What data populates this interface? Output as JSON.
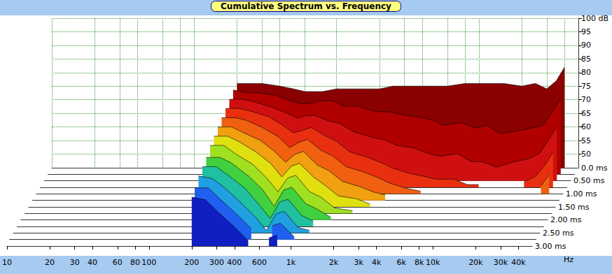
{
  "chart_data": {
    "type": "waterfall",
    "title": "Cumulative Spectrum vs. Frequency",
    "x_label": "Hz",
    "log": "x",
    "grid": true,
    "xlim": [
      10,
      50000
    ],
    "xticks": [
      10,
      20,
      30,
      40,
      60,
      80,
      100,
      200,
      300,
      400,
      600,
      {
        "value": 1000,
        "label": "1k"
      },
      {
        "value": 2000,
        "label": "2k"
      },
      {
        "value": 3000,
        "label": "3k"
      },
      {
        "value": 4000,
        "label": "4k"
      },
      {
        "value": 6000,
        "label": "6k"
      },
      {
        "value": 8000,
        "label": "8k"
      },
      {
        "value": 10000,
        "label": "10k"
      },
      {
        "value": 20000,
        "label": "20k"
      },
      {
        "value": 30000,
        "label": "30k"
      },
      {
        "value": 40000,
        "label": "40k"
      }
    ],
    "ylim": [
      45,
      100
    ],
    "yticks": [
      50,
      55,
      60,
      65,
      70,
      75,
      80,
      85,
      90,
      95,
      {
        "value": 100,
        "label": "100 dB"
      }
    ],
    "zlim": [
      0,
      3
    ],
    "zticks": [
      {
        "value": 0,
        "label": "0.0 ms"
      },
      {
        "value": 0.5,
        "label": "0.50 ms"
      },
      {
        "value": 1,
        "label": "1.00 ms"
      },
      {
        "value": 1.5,
        "label": "1.50 ms"
      },
      {
        "value": 2,
        "label": "2.00 ms"
      },
      {
        "value": 2.5,
        "label": "2.50 ms"
      },
      {
        "value": 3,
        "label": "3.00 ms"
      }
    ],
    "x": [
      200,
      250,
      300,
      400,
      500,
      600,
      700,
      800,
      1000,
      1200,
      1500,
      2000,
      2500,
      3000,
      4000,
      5000,
      6000,
      8000,
      10000,
      12000,
      15000,
      20000,
      25000,
      30000,
      35000,
      40000
    ],
    "z": [
      0,
      0.25,
      0.5,
      0.75,
      1,
      1.25,
      1.5,
      1.75,
      2,
      2.25,
      2.5,
      2.75,
      3
    ],
    "values": [
      [
        76,
        76,
        76,
        75,
        74,
        73,
        73,
        73,
        74,
        74,
        74,
        74,
        75,
        75,
        75,
        75,
        75,
        76,
        76,
        76,
        76,
        75,
        76,
        74,
        77,
        82
      ],
      [
        76,
        75,
        75,
        74,
        72,
        71,
        71,
        72,
        72,
        70,
        70,
        68,
        68,
        67,
        66,
        65,
        63,
        64,
        62,
        63,
        60,
        61,
        62,
        63,
        68,
        73
      ],
      [
        75,
        75,
        74,
        72,
        70,
        68,
        69,
        69,
        67,
        66,
        63,
        61,
        60,
        58,
        57,
        55,
        54,
        55,
        52,
        52,
        50,
        52,
        53,
        55,
        60,
        65
      ],
      [
        74,
        74,
        73,
        71,
        68,
        65,
        66,
        67,
        64,
        62,
        58,
        56,
        54,
        52,
        50,
        49,
        48,
        48,
        46,
        46,
        null,
        null,
        47,
        49,
        53,
        58
      ],
      [
        73,
        73,
        72,
        69,
        66,
        62,
        64,
        65,
        61,
        59,
        55,
        53,
        51,
        49,
        47,
        46,
        null,
        46,
        null,
        null,
        null,
        null,
        null,
        null,
        48,
        52
      ],
      [
        72,
        72,
        70,
        67,
        63,
        59,
        62,
        63,
        58,
        56,
        52,
        50,
        48,
        47,
        null,
        null,
        null,
        null,
        null,
        null,
        null,
        null,
        null,
        null,
        null,
        47
      ],
      [
        71,
        71,
        69,
        65,
        61,
        56,
        60,
        61,
        56,
        53,
        49,
        48,
        46,
        null,
        null,
        null,
        null,
        null,
        null,
        null,
        null,
        null,
        null,
        null,
        null,
        null
      ],
      [
        70,
        70,
        67,
        63,
        58,
        53,
        58,
        59,
        53,
        51,
        47,
        46,
        null,
        null,
        null,
        null,
        null,
        null,
        null,
        null,
        null,
        null,
        null,
        null,
        null,
        null
      ],
      [
        68,
        68,
        66,
        61,
        56,
        50,
        56,
        57,
        51,
        49,
        46,
        null,
        null,
        null,
        null,
        null,
        null,
        null,
        null,
        null,
        null,
        null,
        null,
        null,
        null,
        null
      ],
      [
        67,
        67,
        64,
        59,
        53,
        48,
        54,
        55,
        49,
        47,
        null,
        null,
        null,
        null,
        null,
        null,
        null,
        null,
        null,
        null,
        null,
        null,
        null,
        null,
        null,
        null
      ],
      [
        66,
        65,
        62,
        56,
        51,
        46,
        52,
        53,
        47,
        46,
        null,
        null,
        null,
        null,
        null,
        null,
        null,
        null,
        null,
        null,
        null,
        null,
        null,
        null,
        null,
        null
      ],
      [
        64,
        64,
        60,
        54,
        49,
        null,
        50,
        51,
        46,
        null,
        null,
        null,
        null,
        null,
        null,
        null,
        null,
        null,
        null,
        null,
        null,
        null,
        null,
        null,
        null,
        null
      ],
      [
        63,
        62,
        58,
        52,
        47,
        null,
        48,
        49,
        null,
        null,
        null,
        null,
        null,
        null,
        null,
        null,
        null,
        null,
        null,
        null,
        null,
        null,
        null,
        null,
        null,
        null
      ]
    ],
    "colors": [
      "#8b0000",
      "#b00000",
      "#d01010",
      "#e83010",
      "#f06010",
      "#f0a010",
      "#e0e010",
      "#a0e020",
      "#40d040",
      "#20c0a0",
      "#20a0e0",
      "#2060f0",
      "#1020c0"
    ]
  }
}
